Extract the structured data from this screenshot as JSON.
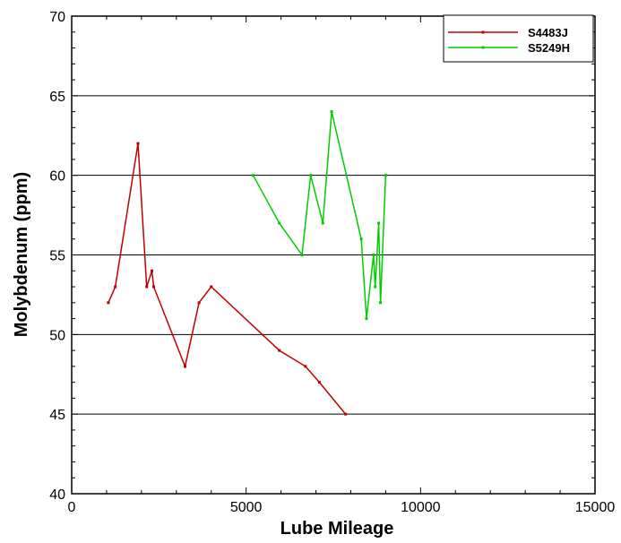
{
  "chart_data": {
    "type": "line",
    "title": "",
    "xlabel": "Lube Mileage",
    "ylabel": "Molybdenum (ppm)",
    "xlim": [
      0,
      15000
    ],
    "ylim": [
      40,
      70
    ],
    "xticks": [
      0,
      5000,
      10000,
      15000
    ],
    "yticks": [
      40,
      45,
      50,
      55,
      60,
      65,
      70
    ],
    "xtick_labels": [
      "0",
      "5000",
      "10000",
      "15000"
    ],
    "ytick_labels": [
      "40",
      "45",
      "50",
      "55",
      "60",
      "65",
      "70"
    ],
    "grid": "horizontal",
    "legend_position": "top-right",
    "series": [
      {
        "name": "S4483J",
        "color": "#c00000",
        "x": [
          1050,
          1250,
          1900,
          2150,
          2300,
          2350,
          3250,
          3650,
          4000,
          5950,
          6700,
          7100,
          7850
        ],
        "y": [
          52,
          53,
          62,
          53,
          54,
          53,
          48,
          52,
          53,
          49,
          48,
          47,
          45
        ]
      },
      {
        "name": "S5249H",
        "color": "#00cc00",
        "x": [
          5200,
          5950,
          6600,
          6850,
          7200,
          7450,
          8300,
          8450,
          8650,
          8700,
          8800,
          8850,
          9000
        ],
        "y": [
          60,
          57,
          55,
          60,
          57,
          64,
          56,
          51,
          55,
          53,
          57,
          52,
          60
        ]
      }
    ]
  }
}
